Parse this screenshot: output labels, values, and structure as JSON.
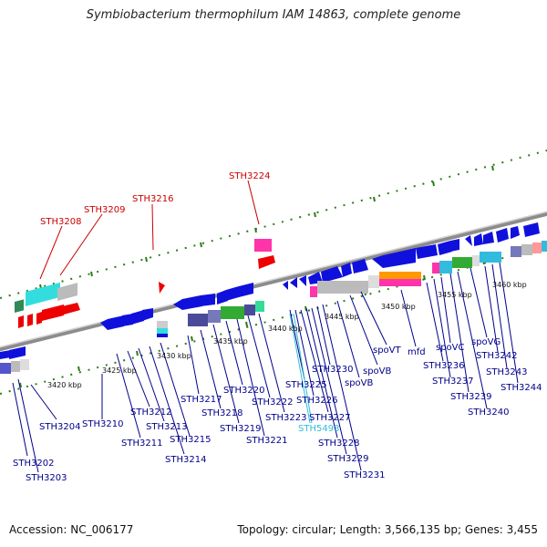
{
  "title": "Symbiobacterium thermophilum IAM 14863, complete genome",
  "footer": {
    "accession": "Accession: NC_006177",
    "summary": "Topology: circular; Length: 3,566,135 bp; Genes: 3,455"
  },
  "colors": {
    "backbone": "#8c8c8c",
    "tick": "#2e7d1a",
    "label_forward": "#cc0000",
    "label_reverse": "#00008b",
    "label_rna": "#33bbdd",
    "gene_forward": "#ee0000",
    "gene_reverse": "#1010dd",
    "gene_other": "#ff33aa"
  },
  "axis": {
    "unit": "kbp",
    "ticks": [
      {
        "value": 3420,
        "label": "3420 kbp"
      },
      {
        "value": 3425,
        "label": "3425 kbp"
      },
      {
        "value": 3430,
        "label": "3430 kbp"
      },
      {
        "value": 3435,
        "label": "3435 kbp"
      },
      {
        "value": 3440,
        "label": "3440 kbp"
      },
      {
        "value": 3445,
        "label": "3445 kbp"
      },
      {
        "value": 3450,
        "label": "3450 kbp"
      },
      {
        "value": 3455,
        "label": "3455 kbp"
      },
      {
        "value": 3460,
        "label": "3460 kbp"
      }
    ]
  },
  "forward_labels": [
    "STH3208",
    "STH3209",
    "STH3216",
    "STH3224"
  ],
  "reverse_labels": [
    "STH3202",
    "STH3203",
    "STH3204",
    "STH3210",
    "STH3211",
    "STH3212",
    "STH3213",
    "STH3214",
    "STH3215",
    "STH3217",
    "STH3218",
    "STH3219",
    "STH3220",
    "STH3221",
    "STH3222",
    "STH3223",
    "STH3225",
    "STH3226",
    "STH3227",
    "STH3228",
    "STH3229",
    "STH3230",
    "STH3231",
    "spoVB",
    "spoVB",
    "spoVT",
    "mfd",
    "STH3236",
    "STH3237",
    "spoVC",
    "STH3239",
    "STH3240",
    "spoVG",
    "STH3242",
    "STH3243",
    "STH3244"
  ],
  "rna_labels": [
    "STH5493"
  ]
}
